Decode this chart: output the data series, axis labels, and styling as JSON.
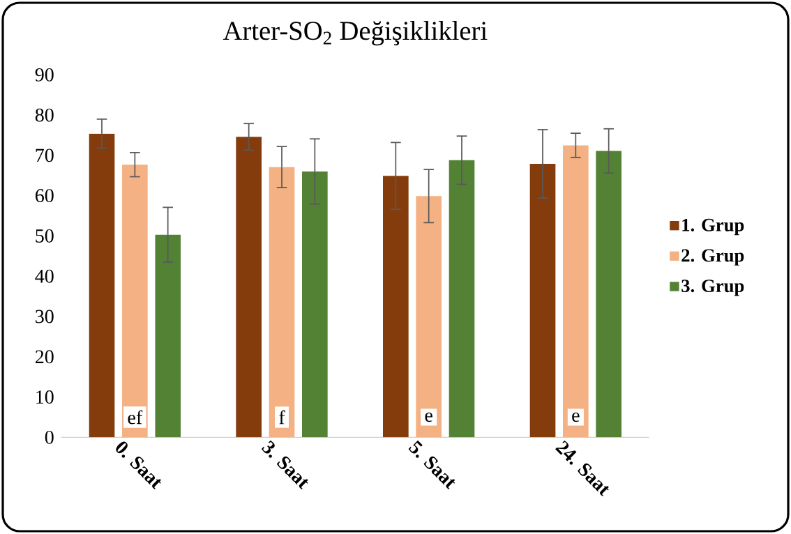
{
  "chart_data": {
    "type": "bar",
    "title": "Arter-SO$_{2}$ Değişiklikleri",
    "categories": [
      "0. Saat",
      "3. Saat",
      "5. Saat",
      "24. Saat"
    ],
    "series": [
      {
        "name": "1. Grup",
        "color": "#843c0c",
        "values": [
          75.4,
          74.6,
          64.9,
          67.9
        ],
        "errors": [
          3.6,
          3.3,
          8.3,
          8.5
        ]
      },
      {
        "name": "2. Grup",
        "color": "#f4b183",
        "values": [
          67.7,
          67.1,
          59.9,
          72.5
        ],
        "errors": [
          3.0,
          5.1,
          6.6,
          3.0
        ]
      },
      {
        "name": "3. Grup",
        "color": "#548235",
        "values": [
          50.3,
          66.0,
          68.8,
          71.1
        ],
        "errors": [
          6.8,
          8.1,
          6.0,
          5.5
        ]
      }
    ],
    "ylim": [
      0,
      90
    ],
    "yticks": [
      0,
      10,
      20,
      30,
      40,
      50,
      60,
      70,
      80,
      90
    ],
    "legend": "right",
    "annotations": [
      {
        "text": "ef",
        "x": "0. Saat",
        "y": 5
      },
      {
        "text": "f",
        "x": "3. Saat",
        "y": 5
      },
      {
        "text": "e",
        "x": "5. Saat",
        "y": 5
      },
      {
        "text": "e",
        "x": "24. Saat",
        "y": 5
      }
    ]
  }
}
